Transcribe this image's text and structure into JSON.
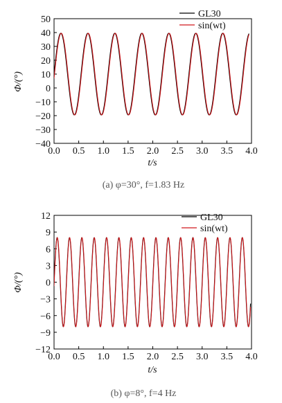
{
  "chart_data": [
    {
      "type": "line",
      "panel": "a",
      "xlabel": "t/s",
      "ylabel": "Φ/(°)",
      "xlim": [
        0.0,
        4.0
      ],
      "ylim": [
        -40,
        50
      ],
      "xticks": [
        "0.0",
        "0.5",
        "1.0",
        "1.5",
        "2.0",
        "2.5",
        "3.0",
        "3.5",
        "4.0"
      ],
      "yticks": [
        "−40",
        "−30",
        "−20",
        "−10",
        "0",
        "10",
        "20",
        "30",
        "40",
        "50"
      ],
      "legend": "top-right",
      "grid": false,
      "caption": "(a) φ=30°, f=1.83 Hz",
      "series": [
        {
          "name": "GL30",
          "color": "#000000",
          "offset": 10,
          "amplitude": 29.5,
          "frequency": 1.83,
          "phase_deg": 0,
          "x_start": 0.0,
          "x_end": 3.95
        },
        {
          "name": "sin(wt)",
          "color": "#d0181c",
          "offset": 10,
          "amplitude": 29.5,
          "frequency": 1.83,
          "phase_deg": -6,
          "x_start": 0.0,
          "x_end": 3.95
        }
      ]
    },
    {
      "type": "line",
      "panel": "b",
      "xlabel": "t/s",
      "ylabel": "Φ/(°)",
      "xlim": [
        0.0,
        4.0
      ],
      "ylim": [
        -12,
        12
      ],
      "xticks": [
        "0.0",
        "0.5",
        "1.0",
        "1.5",
        "2.0",
        "2.5",
        "3.0",
        "3.5",
        "4.0"
      ],
      "yticks": [
        "−12",
        "−9",
        "−6",
        "−3",
        "0",
        "3",
        "6",
        "9",
        "12"
      ],
      "legend": "top-right",
      "grid": false,
      "caption": "(b) φ=8°, f=4 Hz",
      "series": [
        {
          "name": "GL30",
          "color": "#000000",
          "offset": 0,
          "amplitude": 8,
          "frequency": 4,
          "phase_deg": 0,
          "x_start": 0.0,
          "x_end": 3.98
        },
        {
          "name": "sin(wt)",
          "color": "#d0181c",
          "offset": 0,
          "amplitude": 8,
          "frequency": 4,
          "phase_deg": -5,
          "x_start": 0.0,
          "x_end": 3.98
        }
      ]
    }
  ]
}
